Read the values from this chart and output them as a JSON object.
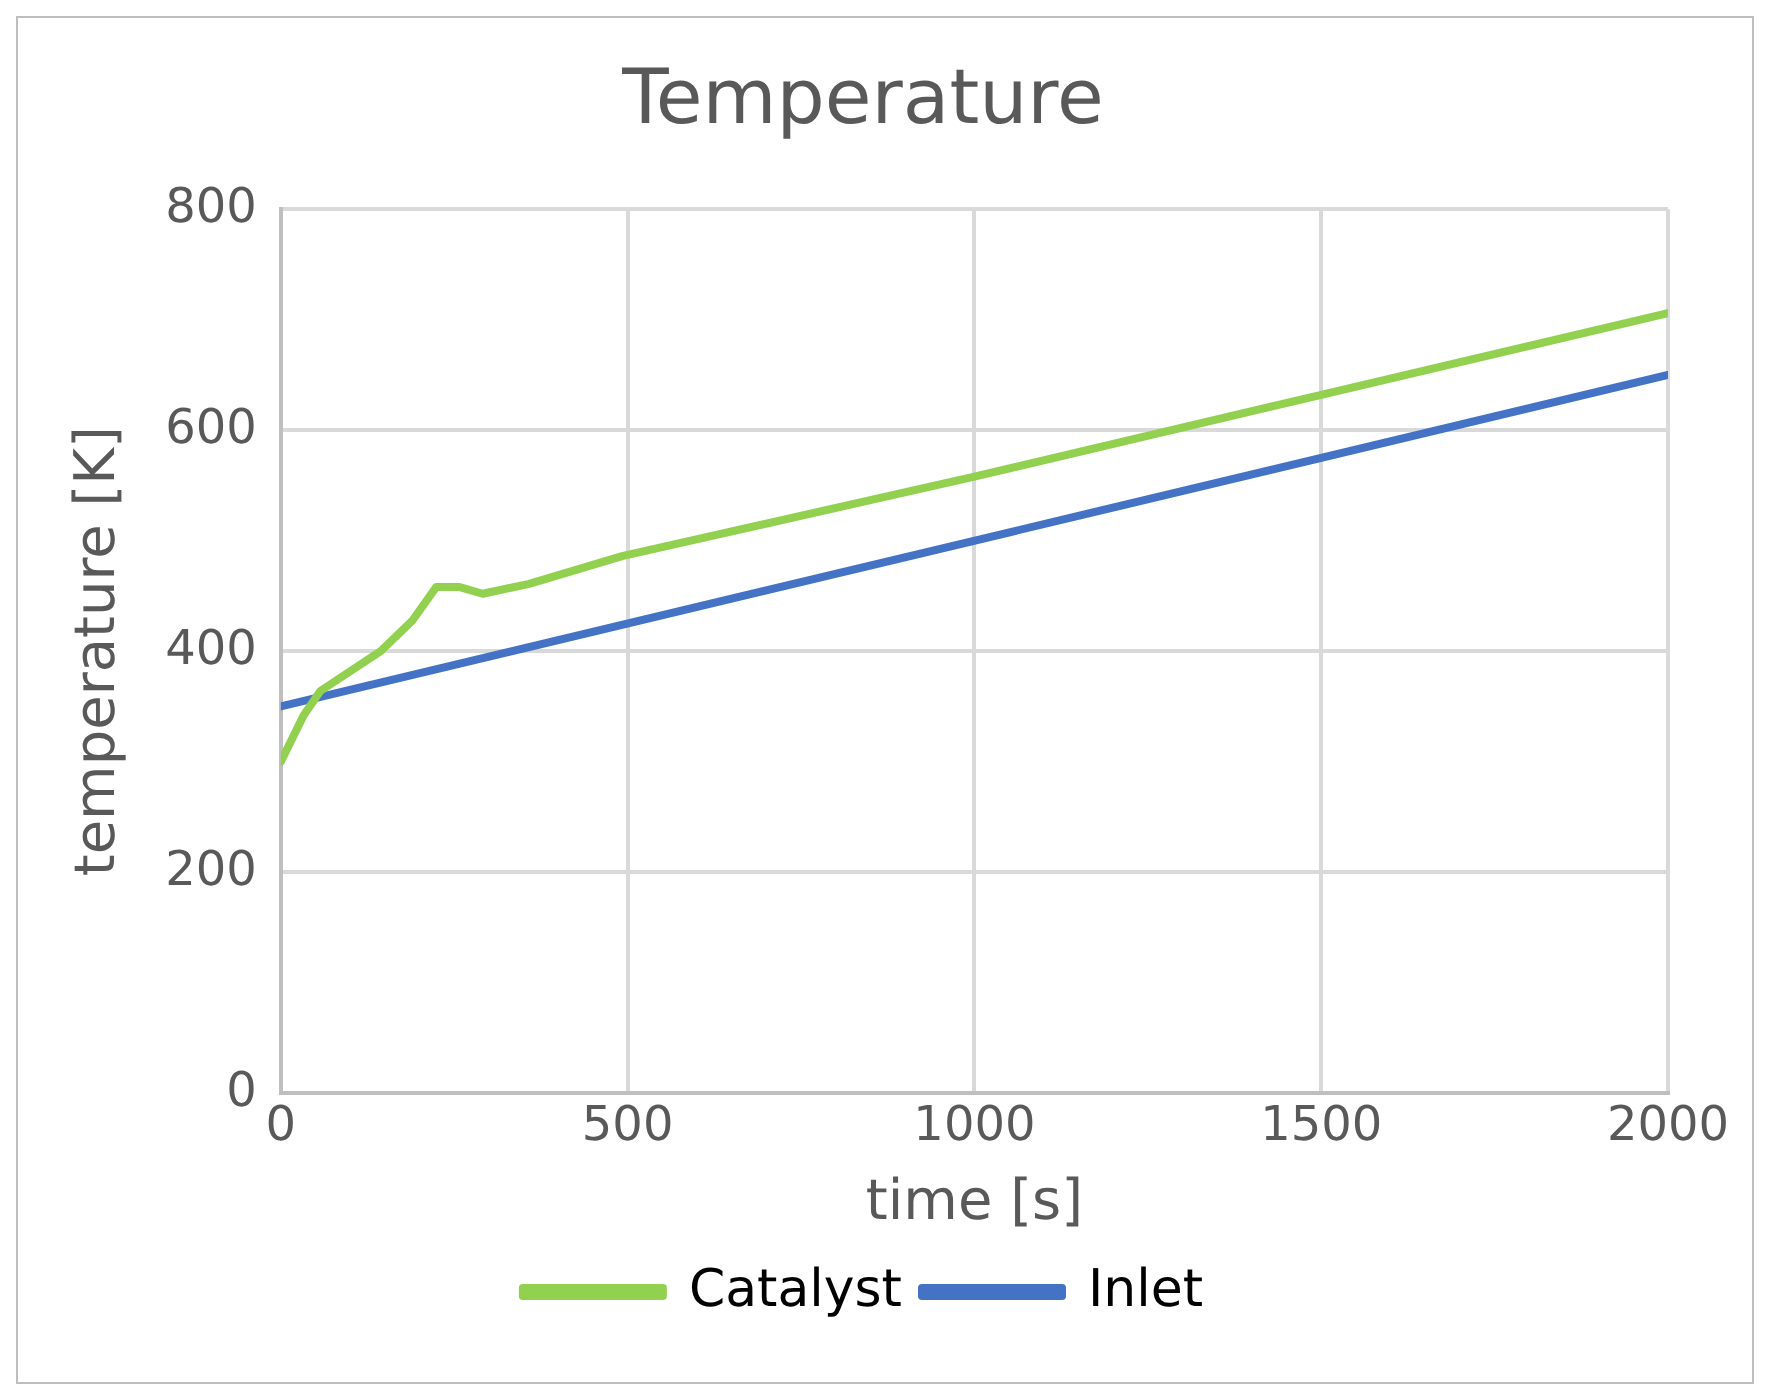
{
  "chart_data": {
    "type": "line",
    "title": "Temperature",
    "xlabel": "time [s]",
    "ylabel": "temperature [K]",
    "xlim": [
      0,
      2000
    ],
    "xticks": [
      0,
      500,
      1000,
      1500,
      2000
    ],
    "ylim": [
      0,
      800
    ],
    "yticks": [
      0,
      200,
      400,
      600,
      800
    ],
    "grid": true,
    "legend": "bottom",
    "marker": "none",
    "line_style": "solid",
    "series": [
      {
        "name": "Catalyst",
        "color": "#92d050",
        "x": [
          0,
          33,
          57,
          144,
          190,
          224,
          258,
          291,
          358,
          492,
          1000,
          1500,
          2000
        ],
        "values": [
          300,
          342,
          364,
          400,
          428,
          458,
          458,
          452,
          461,
          486,
          558,
          632,
          706
        ]
      },
      {
        "name": "Inlet",
        "color": "#4472c4",
        "x": [
          0,
          2000
        ],
        "values": [
          350,
          650
        ]
      }
    ]
  }
}
